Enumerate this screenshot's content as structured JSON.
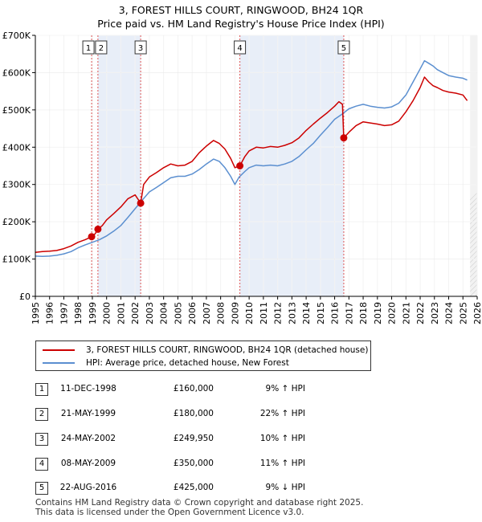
{
  "title_line1": "3, FOREST HILLS COURT, RINGWOOD, BH24 1QR",
  "title_line2": "Price paid vs. HM Land Registry's House Price Index (HPI)",
  "chart_data": {
    "type": "line",
    "title": "3, FOREST HILLS COURT, RINGWOOD, BH24 1QR — Price paid vs. HM Land Registry's House Price Index (HPI)",
    "xlim": [
      1995,
      2026
    ],
    "ylim": [
      0,
      700000
    ],
    "x_ticks": [
      1995,
      1996,
      1997,
      1998,
      1999,
      2000,
      2001,
      2002,
      2003,
      2004,
      2005,
      2006,
      2007,
      2008,
      2009,
      2010,
      2011,
      2012,
      2013,
      2014,
      2015,
      2016,
      2017,
      2018,
      2019,
      2020,
      2021,
      2022,
      2023,
      2024,
      2025,
      2026
    ],
    "y_ticks": [
      {
        "value": 0,
        "label": "£0"
      },
      {
        "value": 100000,
        "label": "£100K"
      },
      {
        "value": 200000,
        "label": "£200K"
      },
      {
        "value": 300000,
        "label": "£300K"
      },
      {
        "value": 400000,
        "label": "£400K"
      },
      {
        "value": 500000,
        "label": "£500K"
      },
      {
        "value": 600000,
        "label": "£600K"
      },
      {
        "value": 700000,
        "label": "£700K"
      }
    ],
    "data_end_year": 2025.5,
    "series": [
      {
        "name": "3, FOREST HILLS COURT, RINGWOOD, BH24 1QR (detached house)",
        "color": "#cc0000",
        "x": [
          1995.0,
          1995.5,
          1996.0,
          1996.5,
          1997.0,
          1997.5,
          1998.0,
          1998.5,
          1998.95,
          1999.2,
          1999.39,
          1999.7,
          2000.0,
          2000.5,
          2001.0,
          2001.5,
          2002.0,
          2002.39,
          2002.6,
          2003.0,
          2003.5,
          2004.0,
          2004.5,
          2005.0,
          2005.5,
          2006.0,
          2006.5,
          2007.0,
          2007.5,
          2007.9,
          2008.3,
          2008.7,
          2009.0,
          2009.35,
          2009.7,
          2010.0,
          2010.5,
          2011.0,
          2011.5,
          2012.0,
          2012.5,
          2013.0,
          2013.5,
          2014.0,
          2014.5,
          2015.0,
          2015.5,
          2016.0,
          2016.3,
          2016.55,
          2016.64,
          2017.0,
          2017.5,
          2018.0,
          2018.5,
          2019.0,
          2019.5,
          2020.0,
          2020.5,
          2021.0,
          2021.5,
          2022.0,
          2022.3,
          2022.6,
          2022.9,
          2023.2,
          2023.6,
          2024.0,
          2024.5,
          2025.0,
          2025.3
        ],
        "y": [
          118000,
          120000,
          121000,
          123000,
          128000,
          135000,
          145000,
          152000,
          160000,
          168000,
          180000,
          190000,
          205000,
          222000,
          240000,
          262000,
          272000,
          249950,
          300000,
          320000,
          332000,
          345000,
          355000,
          350000,
          352000,
          362000,
          385000,
          403000,
          418000,
          410000,
          395000,
          370000,
          345000,
          350000,
          375000,
          390000,
          400000,
          398000,
          402000,
          400000,
          405000,
          412000,
          425000,
          445000,
          462000,
          478000,
          493000,
          510000,
          522000,
          515000,
          425000,
          440000,
          458000,
          468000,
          465000,
          462000,
          458000,
          460000,
          470000,
          495000,
          525000,
          560000,
          588000,
          575000,
          565000,
          560000,
          552000,
          548000,
          545000,
          540000,
          525000
        ]
      },
      {
        "name": "HPI: Average price, detached house, New Forest",
        "color": "#5b8fd0",
        "x": [
          1995.0,
          1995.5,
          1996.0,
          1996.5,
          1997.0,
          1997.5,
          1998.0,
          1998.5,
          1999.0,
          1999.5,
          2000.0,
          2000.5,
          2001.0,
          2001.5,
          2002.0,
          2002.5,
          2003.0,
          2003.5,
          2004.0,
          2004.5,
          2005.0,
          2005.5,
          2006.0,
          2006.5,
          2007.0,
          2007.5,
          2007.9,
          2008.3,
          2008.7,
          2009.0,
          2009.3,
          2009.7,
          2010.0,
          2010.5,
          2011.0,
          2011.5,
          2012.0,
          2012.5,
          2013.0,
          2013.5,
          2014.0,
          2014.5,
          2015.0,
          2015.5,
          2016.0,
          2016.5,
          2017.0,
          2017.5,
          2018.0,
          2018.5,
          2019.0,
          2019.5,
          2020.0,
          2020.5,
          2021.0,
          2021.5,
          2022.0,
          2022.3,
          2022.6,
          2022.9,
          2023.2,
          2023.6,
          2024.0,
          2024.5,
          2025.0,
          2025.3
        ],
        "y": [
          108000,
          107000,
          108000,
          110000,
          114000,
          120000,
          130000,
          138000,
          145000,
          152000,
          162000,
          175000,
          190000,
          212000,
          235000,
          258000,
          280000,
          292000,
          305000,
          318000,
          322000,
          322000,
          328000,
          340000,
          355000,
          368000,
          362000,
          345000,
          322000,
          300000,
          320000,
          335000,
          345000,
          352000,
          350000,
          352000,
          350000,
          355000,
          362000,
          375000,
          393000,
          410000,
          432000,
          453000,
          475000,
          488000,
          503000,
          510000,
          515000,
          510000,
          507000,
          505000,
          508000,
          518000,
          540000,
          575000,
          610000,
          632000,
          625000,
          618000,
          608000,
          600000,
          592000,
          588000,
          585000,
          580000
        ]
      }
    ],
    "sales": [
      {
        "n": "1",
        "year": 1998.95,
        "price": 160000
      },
      {
        "n": "2",
        "year": 1999.39,
        "price": 180000
      },
      {
        "n": "3",
        "year": 2002.39,
        "price": 249950
      },
      {
        "n": "4",
        "year": 2009.35,
        "price": 350000
      },
      {
        "n": "5",
        "year": 2016.64,
        "price": 425000
      }
    ]
  },
  "legend": {
    "property": "3, FOREST HILLS COURT, RINGWOOD, BH24 1QR (detached house)",
    "hpi": "HPI: Average price, detached house, New Forest"
  },
  "colors": {
    "property": "#cc0000",
    "hpi": "#5b8fd0",
    "shade": "#e8eef8"
  },
  "sales_table": [
    {
      "n": "1",
      "date": "11-DEC-1998",
      "price": "£160,000",
      "hpi": "9% ↑ HPI"
    },
    {
      "n": "2",
      "date": "21-MAY-1999",
      "price": "£180,000",
      "hpi": "22% ↑ HPI"
    },
    {
      "n": "3",
      "date": "24-MAY-2002",
      "price": "£249,950",
      "hpi": "10% ↑ HPI"
    },
    {
      "n": "4",
      "date": "08-MAY-2009",
      "price": "£350,000",
      "hpi": "11% ↑ HPI"
    },
    {
      "n": "5",
      "date": "22-AUG-2016",
      "price": "£425,000",
      "hpi": "9% ↓ HPI"
    }
  ],
  "footer": {
    "line1": "Contains HM Land Registry data © Crown copyright and database right 2025.",
    "line2": "This data is licensed under the Open Government Licence v3.0."
  }
}
